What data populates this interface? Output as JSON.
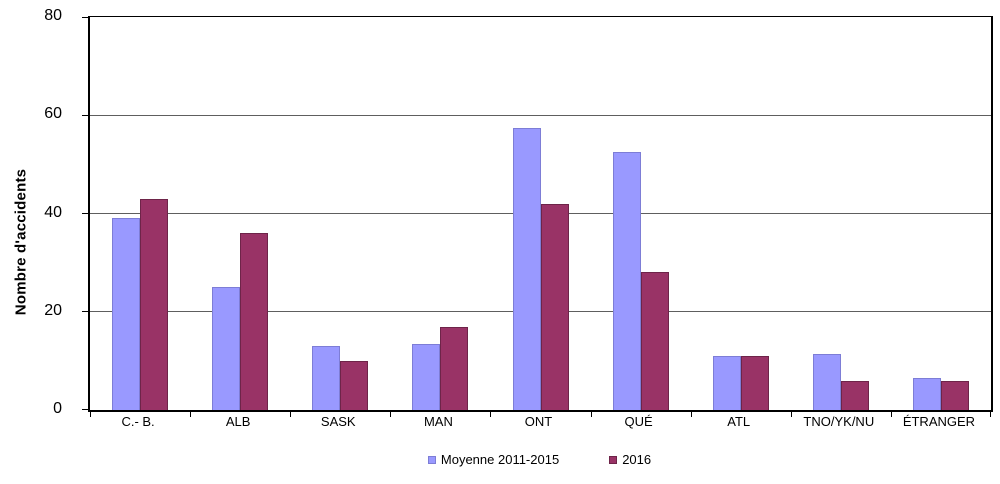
{
  "chart_data": {
    "type": "bar",
    "title": "",
    "xlabel": "",
    "ylabel": "Nombre d'accidents",
    "ylim": [
      0,
      80
    ],
    "y_ticks": [
      0,
      20,
      40,
      60,
      80
    ],
    "grid": "horizontal",
    "legend_position": "bottom-center",
    "background_color": "#ffffff",
    "gridline_color": "#5e5e5e",
    "axis_color": "#000000",
    "categories": [
      "C.- B.",
      "ALB",
      "SASK",
      "MAN",
      "ONT",
      "QUÉ",
      "ATL",
      "TNO/YK/NU",
      "ÉTRANGER"
    ],
    "series": [
      {
        "name": "Moyenne 2011-2015",
        "color": "#9999FF",
        "border_color": "#7d7dd6",
        "values": [
          39,
          25,
          13,
          13.5,
          57.5,
          52.5,
          11,
          11.5,
          6.5
        ]
      },
      {
        "name": "2016",
        "color": "#993366",
        "border_color": "#6e2449",
        "values": [
          43,
          36,
          10,
          17,
          42,
          28,
          11,
          6,
          6
        ]
      }
    ]
  }
}
